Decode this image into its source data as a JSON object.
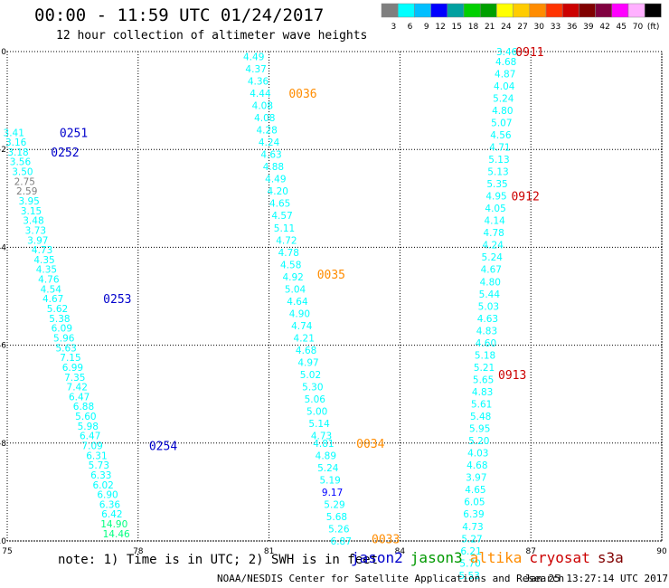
{
  "header": {
    "title": "00:00 - 11:59 UTC 01/24/2017",
    "subtitle": "12 hour collection of altimeter wave heights"
  },
  "scale": {
    "labels": [
      "3",
      "6",
      "9",
      "12",
      "15",
      "18",
      "21",
      "24",
      "27",
      "30",
      "33",
      "36",
      "39",
      "42",
      "45",
      "70",
      "(ft)"
    ],
    "colors": [
      "#7f7f7f",
      "#00ffff",
      "#00bfff",
      "#0000ff",
      "#00a0a0",
      "#00d000",
      "#00a000",
      "#ffff00",
      "#ffcc00",
      "#ff8c00",
      "#ff3300",
      "#cc0000",
      "#800000",
      "#800040",
      "#ff00ff",
      "#ffb0ff",
      "#000000"
    ]
  },
  "footer": {
    "note": "note: 1) Time is in UTC; 2) SWH is in feet",
    "credit": "NOAA/NESDIS Center for Satellite Applications and Research",
    "timestamp": "Jan 25 13:27:14 UTC 2017",
    "satellites": [
      {
        "name": "jason2",
        "color": "#0000cc"
      },
      {
        "name": "jason3",
        "color": "#009900"
      },
      {
        "name": "altika",
        "color": "#ff8c00"
      },
      {
        "name": "cryosat",
        "color": "#cc0000"
      },
      {
        "name": "s3a",
        "color": "#800000"
      }
    ]
  },
  "chart_data": {
    "type": "scatter",
    "title": "00:00 - 11:59 UTC 01/24/2017",
    "subtitle": "12 hour collection of altimeter wave heights",
    "xlim": [
      75,
      90
    ],
    "ylim": [
      0,
      -10
    ],
    "xticks": [
      "75",
      "78",
      "81",
      "84",
      "87",
      "90"
    ],
    "yticks": [
      "0",
      "-2",
      "-4",
      "-6",
      "-8",
      "-10"
    ],
    "grid": true,
    "tracks": [
      {
        "name": "jason2-A",
        "color": "#0000cc",
        "time_labels": [
          {
            "text": "0251",
            "x": 76.2,
            "y": -1.65
          },
          {
            "text": "0252",
            "x": 76.0,
            "y": -2.05
          },
          {
            "text": "0253",
            "x": 77.2,
            "y": -5.05
          },
          {
            "text": "0254",
            "x": 78.25,
            "y": -8.05
          }
        ],
        "points": [
          {
            "x": 75.15,
            "y": -1.65,
            "v": "3.41",
            "c": "#00ffff"
          },
          {
            "x": 75.2,
            "y": -1.85,
            "v": "3.16",
            "c": "#00ffff"
          },
          {
            "x": 75.25,
            "y": -2.05,
            "v": "3.18",
            "c": "#00ffff"
          },
          {
            "x": 75.3,
            "y": -2.25,
            "v": "3.56",
            "c": "#00ffff"
          },
          {
            "x": 75.35,
            "y": -2.45,
            "v": "3.50",
            "c": "#00ffff"
          },
          {
            "x": 75.4,
            "y": -2.65,
            "v": "2.75",
            "c": "#7f7f7f"
          },
          {
            "x": 75.45,
            "y": -2.85,
            "v": "2.59",
            "c": "#7f7f7f"
          },
          {
            "x": 75.5,
            "y": -3.05,
            "v": "3.95",
            "c": "#00ffff"
          },
          {
            "x": 75.55,
            "y": -3.25,
            "v": "3.15",
            "c": "#00ffff"
          },
          {
            "x": 75.6,
            "y": -3.45,
            "v": "3.48",
            "c": "#00ffff"
          },
          {
            "x": 75.65,
            "y": -3.65,
            "v": "3.73",
            "c": "#00ffff"
          },
          {
            "x": 75.7,
            "y": -3.85,
            "v": "3.97",
            "c": "#00ffff"
          },
          {
            "x": 75.8,
            "y": -4.05,
            "v": "4.73",
            "c": "#00ffff"
          },
          {
            "x": 75.85,
            "y": -4.25,
            "v": "4.35",
            "c": "#00ffff"
          },
          {
            "x": 75.9,
            "y": -4.45,
            "v": "4.35",
            "c": "#00ffff"
          },
          {
            "x": 75.95,
            "y": -4.65,
            "v": "4.76",
            "c": "#00ffff"
          },
          {
            "x": 76.0,
            "y": -4.85,
            "v": "4.54",
            "c": "#00ffff"
          },
          {
            "x": 76.05,
            "y": -5.05,
            "v": "4.67",
            "c": "#00ffff"
          },
          {
            "x": 76.15,
            "y": -5.25,
            "v": "5.62",
            "c": "#00ffff"
          },
          {
            "x": 76.2,
            "y": -5.45,
            "v": "5.38",
            "c": "#00ffff"
          },
          {
            "x": 76.25,
            "y": -5.65,
            "v": "6.09",
            "c": "#00ffff"
          },
          {
            "x": 76.3,
            "y": -5.85,
            "v": "5.96",
            "c": "#00ffff"
          },
          {
            "x": 76.35,
            "y": -6.05,
            "v": "5.63",
            "c": "#00ffff"
          },
          {
            "x": 76.45,
            "y": -6.25,
            "v": "7.15",
            "c": "#00ffff"
          },
          {
            "x": 76.5,
            "y": -6.45,
            "v": "6.99",
            "c": "#00ffff"
          },
          {
            "x": 76.55,
            "y": -6.65,
            "v": "7.35",
            "c": "#00ffff"
          },
          {
            "x": 76.6,
            "y": -6.85,
            "v": "7.42",
            "c": "#00ffff"
          },
          {
            "x": 76.65,
            "y": -7.05,
            "v": "6.47",
            "c": "#00ffff"
          },
          {
            "x": 76.75,
            "y": -7.25,
            "v": "6.88",
            "c": "#00ffff"
          },
          {
            "x": 76.8,
            "y": -7.45,
            "v": "5.60",
            "c": "#00ffff"
          },
          {
            "x": 76.85,
            "y": -7.65,
            "v": "5.98",
            "c": "#00ffff"
          },
          {
            "x": 76.9,
            "y": -7.85,
            "v": "6.47",
            "c": "#00ffff"
          },
          {
            "x": 76.95,
            "y": -8.05,
            "v": "7.09",
            "c": "#00ffff"
          },
          {
            "x": 77.05,
            "y": -8.25,
            "v": "6.31",
            "c": "#00ffff"
          },
          {
            "x": 77.1,
            "y": -8.45,
            "v": "5.73",
            "c": "#00ffff"
          },
          {
            "x": 77.15,
            "y": -8.65,
            "v": "6.33",
            "c": "#00ffff"
          },
          {
            "x": 77.2,
            "y": -8.85,
            "v": "6.02",
            "c": "#00ffff"
          },
          {
            "x": 77.3,
            "y": -9.05,
            "v": "6.90",
            "c": "#00ffff"
          },
          {
            "x": 77.35,
            "y": -9.25,
            "v": "6.36",
            "c": "#00ffff"
          },
          {
            "x": 77.4,
            "y": -9.45,
            "v": "6.42",
            "c": "#00ffff"
          },
          {
            "x": 77.45,
            "y": -9.65,
            "v": "14.90",
            "c": "#00ff80"
          },
          {
            "x": 77.5,
            "y": -9.85,
            "v": "14.46",
            "c": "#00ff80"
          }
        ]
      },
      {
        "name": "altika",
        "color": "#ff8c00",
        "time_labels": [
          {
            "text": "0036",
            "x": 81.45,
            "y": -0.85
          },
          {
            "text": "0035",
            "x": 82.1,
            "y": -4.55
          },
          {
            "text": "0034",
            "x": 83.0,
            "y": -8.0
          },
          {
            "text": "0033",
            "x": 83.35,
            "y": -9.95
          }
        ],
        "points": [
          {
            "x": 80.65,
            "y": -0.1,
            "v": "4.49",
            "c": "#00ffff"
          },
          {
            "x": 80.7,
            "y": -0.35,
            "v": "4.37",
            "c": "#00ffff"
          },
          {
            "x": 80.75,
            "y": -0.6,
            "v": "4.36",
            "c": "#00ffff"
          },
          {
            "x": 80.8,
            "y": -0.85,
            "v": "4.44",
            "c": "#00ffff"
          },
          {
            "x": 80.85,
            "y": -1.1,
            "v": "4.08",
            "c": "#00ffff"
          },
          {
            "x": 80.9,
            "y": -1.35,
            "v": "4.08",
            "c": "#00ffff"
          },
          {
            "x": 80.95,
            "y": -1.6,
            "v": "4.28",
            "c": "#00ffff"
          },
          {
            "x": 81.0,
            "y": -1.85,
            "v": "4.24",
            "c": "#00ffff"
          },
          {
            "x": 81.05,
            "y": -2.1,
            "v": "4.63",
            "c": "#00ffff"
          },
          {
            "x": 81.1,
            "y": -2.35,
            "v": "4.88",
            "c": "#00ffff"
          },
          {
            "x": 81.15,
            "y": -2.6,
            "v": "4.49",
            "c": "#00ffff"
          },
          {
            "x": 81.2,
            "y": -2.85,
            "v": "4.20",
            "c": "#00ffff"
          },
          {
            "x": 81.25,
            "y": -3.1,
            "v": "4.65",
            "c": "#00ffff"
          },
          {
            "x": 81.3,
            "y": -3.35,
            "v": "4.57",
            "c": "#00ffff"
          },
          {
            "x": 81.35,
            "y": -3.6,
            "v": "5.11",
            "c": "#00ffff"
          },
          {
            "x": 81.4,
            "y": -3.85,
            "v": "4.72",
            "c": "#00ffff"
          },
          {
            "x": 81.45,
            "y": -4.1,
            "v": "4.78",
            "c": "#00ffff"
          },
          {
            "x": 81.5,
            "y": -4.35,
            "v": "4.58",
            "c": "#00ffff"
          },
          {
            "x": 81.55,
            "y": -4.6,
            "v": "4.92",
            "c": "#00ffff"
          },
          {
            "x": 81.6,
            "y": -4.85,
            "v": "5.04",
            "c": "#00ffff"
          },
          {
            "x": 81.65,
            "y": -5.1,
            "v": "4.64",
            "c": "#00ffff"
          },
          {
            "x": 81.7,
            "y": -5.35,
            "v": "4.90",
            "c": "#00ffff"
          },
          {
            "x": 81.75,
            "y": -5.6,
            "v": "4.74",
            "c": "#00ffff"
          },
          {
            "x": 81.8,
            "y": -5.85,
            "v": "4.21",
            "c": "#00ffff"
          },
          {
            "x": 81.85,
            "y": -6.1,
            "v": "4.68",
            "c": "#00ffff"
          },
          {
            "x": 81.9,
            "y": -6.35,
            "v": "4.97",
            "c": "#00ffff"
          },
          {
            "x": 81.95,
            "y": -6.6,
            "v": "5.02",
            "c": "#00ffff"
          },
          {
            "x": 82.0,
            "y": -6.85,
            "v": "5.30",
            "c": "#00ffff"
          },
          {
            "x": 82.05,
            "y": -7.1,
            "v": "5.06",
            "c": "#00ffff"
          },
          {
            "x": 82.1,
            "y": -7.35,
            "v": "5.00",
            "c": "#00ffff"
          },
          {
            "x": 82.15,
            "y": -7.6,
            "v": "5.14",
            "c": "#00ffff"
          },
          {
            "x": 82.2,
            "y": -7.85,
            "v": "4.73",
            "c": "#00ffff"
          },
          {
            "x": 82.25,
            "y": -8.0,
            "v": "4.81",
            "c": "#00ffff"
          },
          {
            "x": 82.3,
            "y": -8.25,
            "v": "4.89",
            "c": "#00ffff"
          },
          {
            "x": 82.35,
            "y": -8.5,
            "v": "5.24",
            "c": "#00ffff"
          },
          {
            "x": 82.4,
            "y": -8.75,
            "v": "5.19",
            "c": "#00ffff"
          },
          {
            "x": 82.45,
            "y": -9.0,
            "v": "9.17",
            "c": "#0000ff"
          },
          {
            "x": 82.5,
            "y": -9.25,
            "v": "5.29",
            "c": "#00ffff"
          },
          {
            "x": 82.55,
            "y": -9.5,
            "v": "5.68",
            "c": "#00ffff"
          },
          {
            "x": 82.6,
            "y": -9.75,
            "v": "5.26",
            "c": "#00ffff"
          },
          {
            "x": 82.65,
            "y": -10.0,
            "v": "6.87",
            "c": "#00ffff"
          }
        ]
      },
      {
        "name": "cryosat",
        "color": "#cc0000",
        "time_labels": [
          {
            "text": "0911",
            "x": 86.65,
            "y": 0.0
          },
          {
            "text": "0912",
            "x": 86.55,
            "y": -2.95
          },
          {
            "text": "0913",
            "x": 86.25,
            "y": -6.6
          }
        ],
        "points": [
          {
            "x": 86.45,
            "y": 0.0,
            "v": "3.46",
            "c": "#00ffff"
          },
          {
            "x": 86.43,
            "y": -0.2,
            "v": "4.68",
            "c": "#00ffff"
          },
          {
            "x": 86.41,
            "y": -0.45,
            "v": "4.87",
            "c": "#00ffff"
          },
          {
            "x": 86.39,
            "y": -0.7,
            "v": "4.04",
            "c": "#00ffff"
          },
          {
            "x": 86.37,
            "y": -0.95,
            "v": "5.24",
            "c": "#00ffff"
          },
          {
            "x": 86.35,
            "y": -1.2,
            "v": "4.80",
            "c": "#00ffff"
          },
          {
            "x": 86.33,
            "y": -1.45,
            "v": "5.07",
            "c": "#00ffff"
          },
          {
            "x": 86.31,
            "y": -1.7,
            "v": "4.56",
            "c": "#00ffff"
          },
          {
            "x": 86.29,
            "y": -1.95,
            "v": "4.71",
            "c": "#00ffff"
          },
          {
            "x": 86.27,
            "y": -2.2,
            "v": "5.13",
            "c": "#00ffff"
          },
          {
            "x": 86.25,
            "y": -2.45,
            "v": "5.13",
            "c": "#00ffff"
          },
          {
            "x": 86.23,
            "y": -2.7,
            "v": "5.35",
            "c": "#00ffff"
          },
          {
            "x": 86.21,
            "y": -2.95,
            "v": "4.95",
            "c": "#00ffff"
          },
          {
            "x": 86.19,
            "y": -3.2,
            "v": "4.05",
            "c": "#00ffff"
          },
          {
            "x": 86.17,
            "y": -3.45,
            "v": "4.14",
            "c": "#00ffff"
          },
          {
            "x": 86.15,
            "y": -3.7,
            "v": "4.78",
            "c": "#00ffff"
          },
          {
            "x": 86.13,
            "y": -3.95,
            "v": "4.24",
            "c": "#00ffff"
          },
          {
            "x": 86.11,
            "y": -4.2,
            "v": "5.24",
            "c": "#00ffff"
          },
          {
            "x": 86.09,
            "y": -4.45,
            "v": "4.67",
            "c": "#00ffff"
          },
          {
            "x": 86.07,
            "y": -4.7,
            "v": "4.80",
            "c": "#00ffff"
          },
          {
            "x": 86.05,
            "y": -4.95,
            "v": "5.44",
            "c": "#00ffff"
          },
          {
            "x": 86.03,
            "y": -5.2,
            "v": "5.03",
            "c": "#00ffff"
          },
          {
            "x": 86.01,
            "y": -5.45,
            "v": "4.63",
            "c": "#00ffff"
          },
          {
            "x": 85.99,
            "y": -5.7,
            "v": "4.83",
            "c": "#00ffff"
          },
          {
            "x": 85.97,
            "y": -5.95,
            "v": "4.60",
            "c": "#00ffff"
          },
          {
            "x": 85.95,
            "y": -6.2,
            "v": "5.18",
            "c": "#00ffff"
          },
          {
            "x": 85.93,
            "y": -6.45,
            "v": "5.21",
            "c": "#00ffff"
          },
          {
            "x": 85.91,
            "y": -6.7,
            "v": "5.65",
            "c": "#00ffff"
          },
          {
            "x": 85.89,
            "y": -6.95,
            "v": "4.83",
            "c": "#00ffff"
          },
          {
            "x": 85.87,
            "y": -7.2,
            "v": "5.61",
            "c": "#00ffff"
          },
          {
            "x": 85.85,
            "y": -7.45,
            "v": "5.48",
            "c": "#00ffff"
          },
          {
            "x": 85.83,
            "y": -7.7,
            "v": "5.95",
            "c": "#00ffff"
          },
          {
            "x": 85.81,
            "y": -7.95,
            "v": "5.20",
            "c": "#00ffff"
          },
          {
            "x": 85.79,
            "y": -8.2,
            "v": "4.03",
            "c": "#00ffff"
          },
          {
            "x": 85.77,
            "y": -8.45,
            "v": "4.68",
            "c": "#00ffff"
          },
          {
            "x": 85.75,
            "y": -8.7,
            "v": "3.97",
            "c": "#00ffff"
          },
          {
            "x": 85.73,
            "y": -8.95,
            "v": "4.65",
            "c": "#00ffff"
          },
          {
            "x": 85.71,
            "y": -9.2,
            "v": "6.05",
            "c": "#00ffff"
          },
          {
            "x": 85.69,
            "y": -9.45,
            "v": "6.39",
            "c": "#00ffff"
          },
          {
            "x": 85.67,
            "y": -9.7,
            "v": "4.73",
            "c": "#00ffff"
          },
          {
            "x": 85.65,
            "y": -9.95,
            "v": "5.27",
            "c": "#00ffff"
          },
          {
            "x": 85.63,
            "y": -10.2,
            "v": "6.21",
            "c": "#00ffff"
          },
          {
            "x": 85.61,
            "y": -10.45,
            "v": "5.70",
            "c": "#00ffff"
          },
          {
            "x": 85.59,
            "y": -10.7,
            "v": "5.53",
            "c": "#00ffff"
          }
        ]
      }
    ]
  }
}
